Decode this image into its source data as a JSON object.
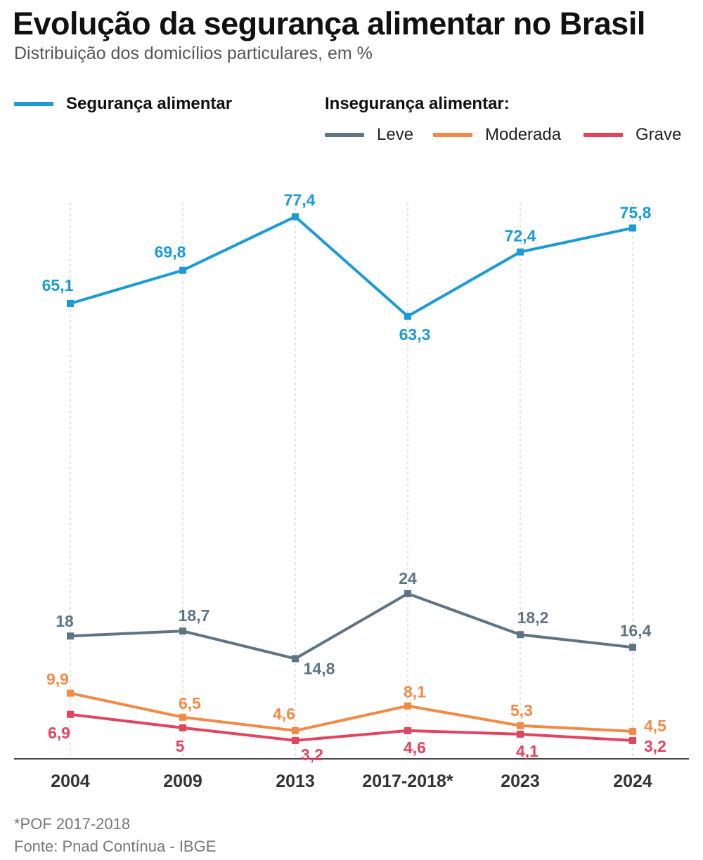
{
  "title": "Evolução da segurança alimentar no Brasil",
  "subtitle": "Distribuição dos domicílios particulares, em %",
  "legend": {
    "food_security": "Segurança alimentar",
    "insecurity_group": "Insegurança alimentar:",
    "mild": "Leve",
    "moderate": "Moderada",
    "severe": "Grave"
  },
  "colors": {
    "food_security": "#1a9bd7",
    "mild": "#5f7482",
    "moderate": "#f28a45",
    "severe": "#e0445f"
  },
  "footnotes": {
    "pof": "*POF 2017-2018",
    "source": "Fonte: Pnad Contínua - IBGE"
  },
  "chart_data": {
    "type": "line",
    "categories": [
      "2004",
      "2009",
      "2013",
      "2017-2018*",
      "2023",
      "2024"
    ],
    "series": [
      {
        "name": "Segurança alimentar",
        "values": [
          65.1,
          69.8,
          77.4,
          63.3,
          72.4,
          75.8
        ],
        "labels": [
          "65,1",
          "69,8",
          "77,4",
          "63,3",
          "72,4",
          "75,8"
        ]
      },
      {
        "name": "Leve",
        "values": [
          18,
          18.7,
          14.8,
          24,
          18.2,
          16.4
        ],
        "labels": [
          "18",
          "18,7",
          "14,8",
          "24",
          "18,2",
          "16,4"
        ]
      },
      {
        "name": "Moderada",
        "values": [
          9.9,
          6.5,
          4.6,
          8.1,
          5.3,
          4.5
        ],
        "labels": [
          "9,9",
          "6,5",
          "4,6",
          "8,1",
          "5,3",
          "4,5"
        ]
      },
      {
        "name": "Grave",
        "values": [
          6.9,
          5,
          3.2,
          4.6,
          4.1,
          3.2
        ],
        "labels": [
          "6,9",
          "5",
          "3,2",
          "4,6",
          "4,1",
          "3,2"
        ]
      }
    ],
    "grid": "vertical-dashed",
    "legend_position": "top"
  }
}
